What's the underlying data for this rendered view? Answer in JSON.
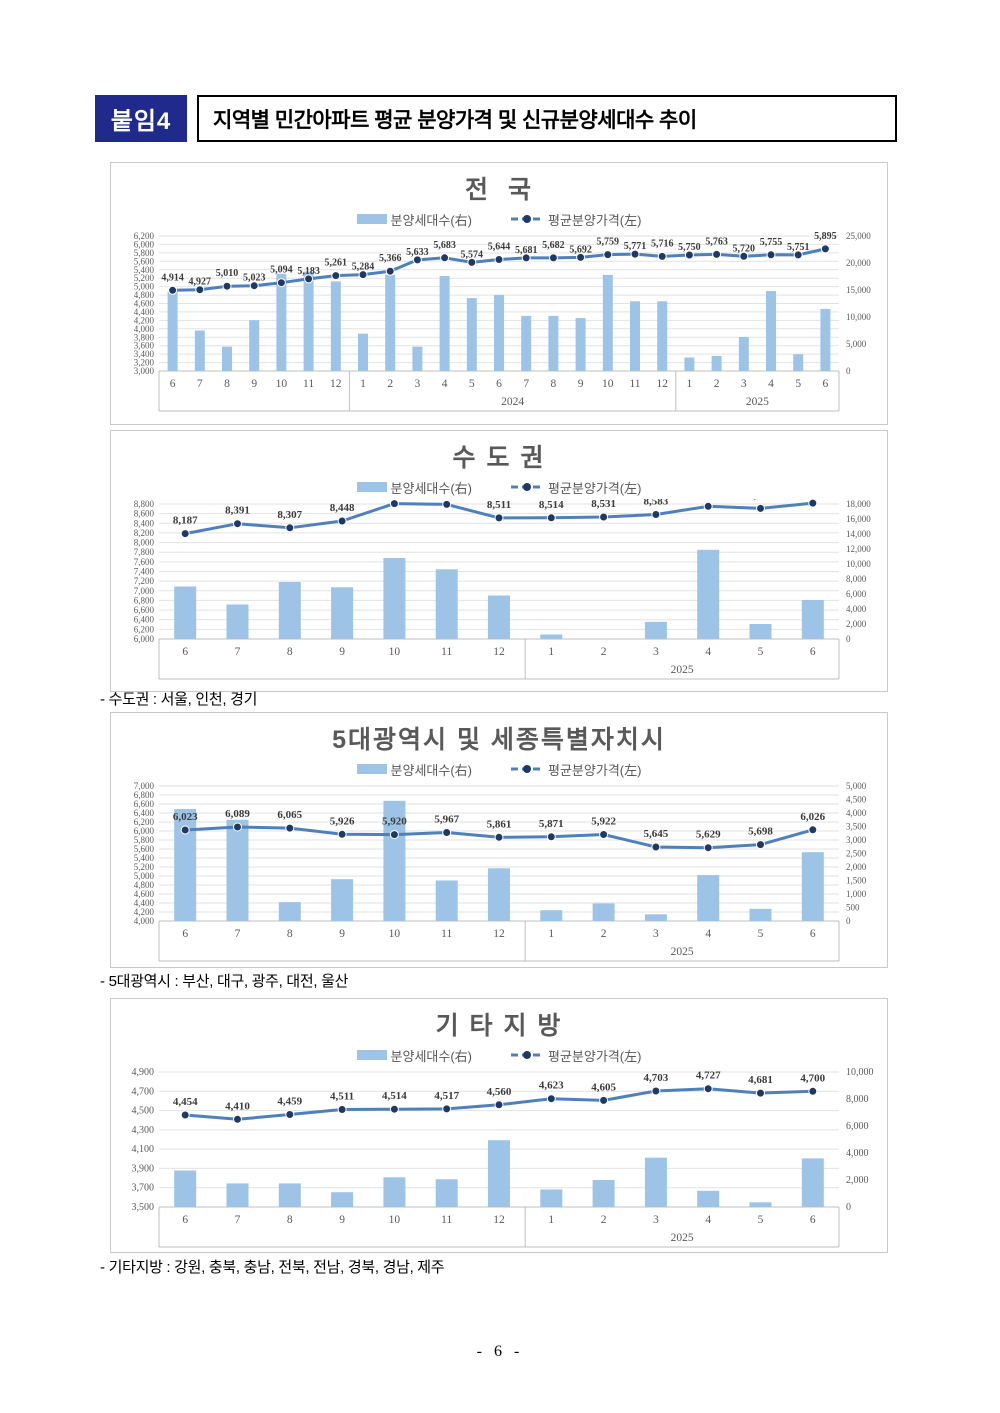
{
  "header": {
    "badge": "붙임4",
    "title": "지역별 민간아파트 평균 분양가격 및 신규분양세대수 추이"
  },
  "legend": {
    "bar_label": "분양세대수(右)",
    "line_label": "평균분양가격(左)"
  },
  "footnotes": [
    "- 수도권 : 서울, 인천, 경기",
    "- 5대광역시 : 부산, 대구, 광주, 대전, 울산",
    "- 기타지방 : 강원, 충북, 충남, 전북, 전남, 경북, 경남, 제주"
  ],
  "footer": {
    "page_number": "- 6 -"
  },
  "colors": {
    "bar": "#9DC3E6",
    "line": "#4E80BC",
    "marker": "#1F3864",
    "grid": "#E2E2E2",
    "axis_line": "#BFBFBF",
    "axis_text": "#595959",
    "data_label": "#3B3B3B",
    "badge_bg": "#202A8C"
  },
  "chart_data": [
    {
      "type": "bar+line",
      "title": "전  국",
      "categories": [
        "6",
        "7",
        "8",
        "9",
        "10",
        "11",
        "12",
        "1",
        "2",
        "3",
        "4",
        "5",
        "6",
        "7",
        "8",
        "9",
        "10",
        "11",
        "12",
        "1",
        "2",
        "3",
        "4",
        "5",
        "6"
      ],
      "year_groups": [
        {
          "label": "",
          "count": 7
        },
        {
          "label": "2024",
          "count": 12
        },
        {
          "label": "2025",
          "count": 6
        }
      ],
      "series": [
        {
          "name": "분양세대수(右)",
          "type": "bar",
          "axis": "right",
          "values": [
            14700,
            7500,
            4500,
            9400,
            18000,
            18400,
            16600,
            6900,
            17800,
            4500,
            17600,
            13500,
            14100,
            10200,
            10200,
            9800,
            17800,
            12900,
            12900,
            2500,
            2800,
            6300,
            14800,
            3100,
            11500
          ]
        },
        {
          "name": "평균분양가격(左)",
          "type": "line",
          "axis": "left",
          "values": [
            4914,
            4927,
            5010,
            5023,
            5094,
            5183,
            5261,
            5284,
            5366,
            5633,
            5683,
            5574,
            5644,
            5681,
            5682,
            5692,
            5759,
            5771,
            5716,
            5750,
            5763,
            5720,
            5755,
            5751,
            5895
          ]
        }
      ],
      "left_axis": {
        "min": 3000,
        "max": 6200,
        "step": 200
      },
      "right_axis": {
        "min": 0,
        "max": 25000,
        "step": 5000
      }
    },
    {
      "type": "bar+line",
      "title": "수 도 권",
      "categories": [
        "6",
        "7",
        "8",
        "9",
        "10",
        "11",
        "12",
        "1",
        "2",
        "3",
        "4",
        "5",
        "6"
      ],
      "year_groups": [
        {
          "label": "",
          "count": 7
        },
        {
          "label": "2025",
          "count": 6
        }
      ],
      "series": [
        {
          "name": "분양세대수(右)",
          "type": "bar",
          "axis": "right",
          "values": [
            7000,
            4600,
            7600,
            6900,
            10800,
            9300,
            5800,
            600,
            0,
            2300,
            11900,
            2000,
            5200
          ]
        },
        {
          "name": "평균분양가격(左)",
          "type": "line",
          "axis": "left",
          "values": [
            8187,
            8391,
            8307,
            8448,
            8808,
            8791,
            8511,
            8514,
            8531,
            8583,
            8752,
            8709,
            8819
          ]
        }
      ],
      "left_axis": {
        "min": 6000,
        "max": 8800,
        "step": 200
      },
      "right_axis": {
        "min": 0,
        "max": 18000,
        "step": 2000
      }
    },
    {
      "type": "bar+line",
      "title": "5대광역시 및 세종특별자치시",
      "categories": [
        "6",
        "7",
        "8",
        "9",
        "10",
        "11",
        "12",
        "1",
        "2",
        "3",
        "4",
        "5",
        "6"
      ],
      "year_groups": [
        {
          "label": "",
          "count": 7
        },
        {
          "label": "2025",
          "count": 6
        }
      ],
      "series": [
        {
          "name": "분양세대수(右)",
          "type": "bar",
          "axis": "right",
          "values": [
            4150,
            3750,
            700,
            1550,
            4450,
            1500,
            1950,
            400,
            650,
            250,
            1700,
            450,
            2550
          ]
        },
        {
          "name": "평균분양가격(左)",
          "type": "line",
          "axis": "left",
          "values": [
            6023,
            6089,
            6065,
            5926,
            5920,
            5967,
            5861,
            5871,
            5922,
            5645,
            5629,
            5698,
            6026
          ]
        }
      ],
      "left_axis": {
        "min": 4000,
        "max": 7000,
        "step": 200
      },
      "right_axis": {
        "min": 0,
        "max": 5000,
        "step": 500
      }
    },
    {
      "type": "bar+line",
      "title": "기 타 지 방",
      "categories": [
        "6",
        "7",
        "8",
        "9",
        "10",
        "11",
        "12",
        "1",
        "2",
        "3",
        "4",
        "5",
        "6"
      ],
      "year_groups": [
        {
          "label": "",
          "count": 7
        },
        {
          "label": "2025",
          "count": 6
        }
      ],
      "series": [
        {
          "name": "분양세대수(右)",
          "type": "bar",
          "axis": "right",
          "values": [
            2700,
            1750,
            1750,
            1100,
            2200,
            2050,
            4950,
            1300,
            2000,
            3650,
            1200,
            350,
            3600
          ]
        },
        {
          "name": "평균분양가격(左)",
          "type": "line",
          "axis": "left",
          "values": [
            4454,
            4410,
            4459,
            4511,
            4514,
            4517,
            4560,
            4623,
            4605,
            4703,
            4727,
            4681,
            4700
          ]
        }
      ],
      "left_axis": {
        "min": 3500,
        "max": 4900,
        "step": 200
      },
      "right_axis": {
        "min": 0,
        "max": 10000,
        "step": 2000
      }
    }
  ]
}
